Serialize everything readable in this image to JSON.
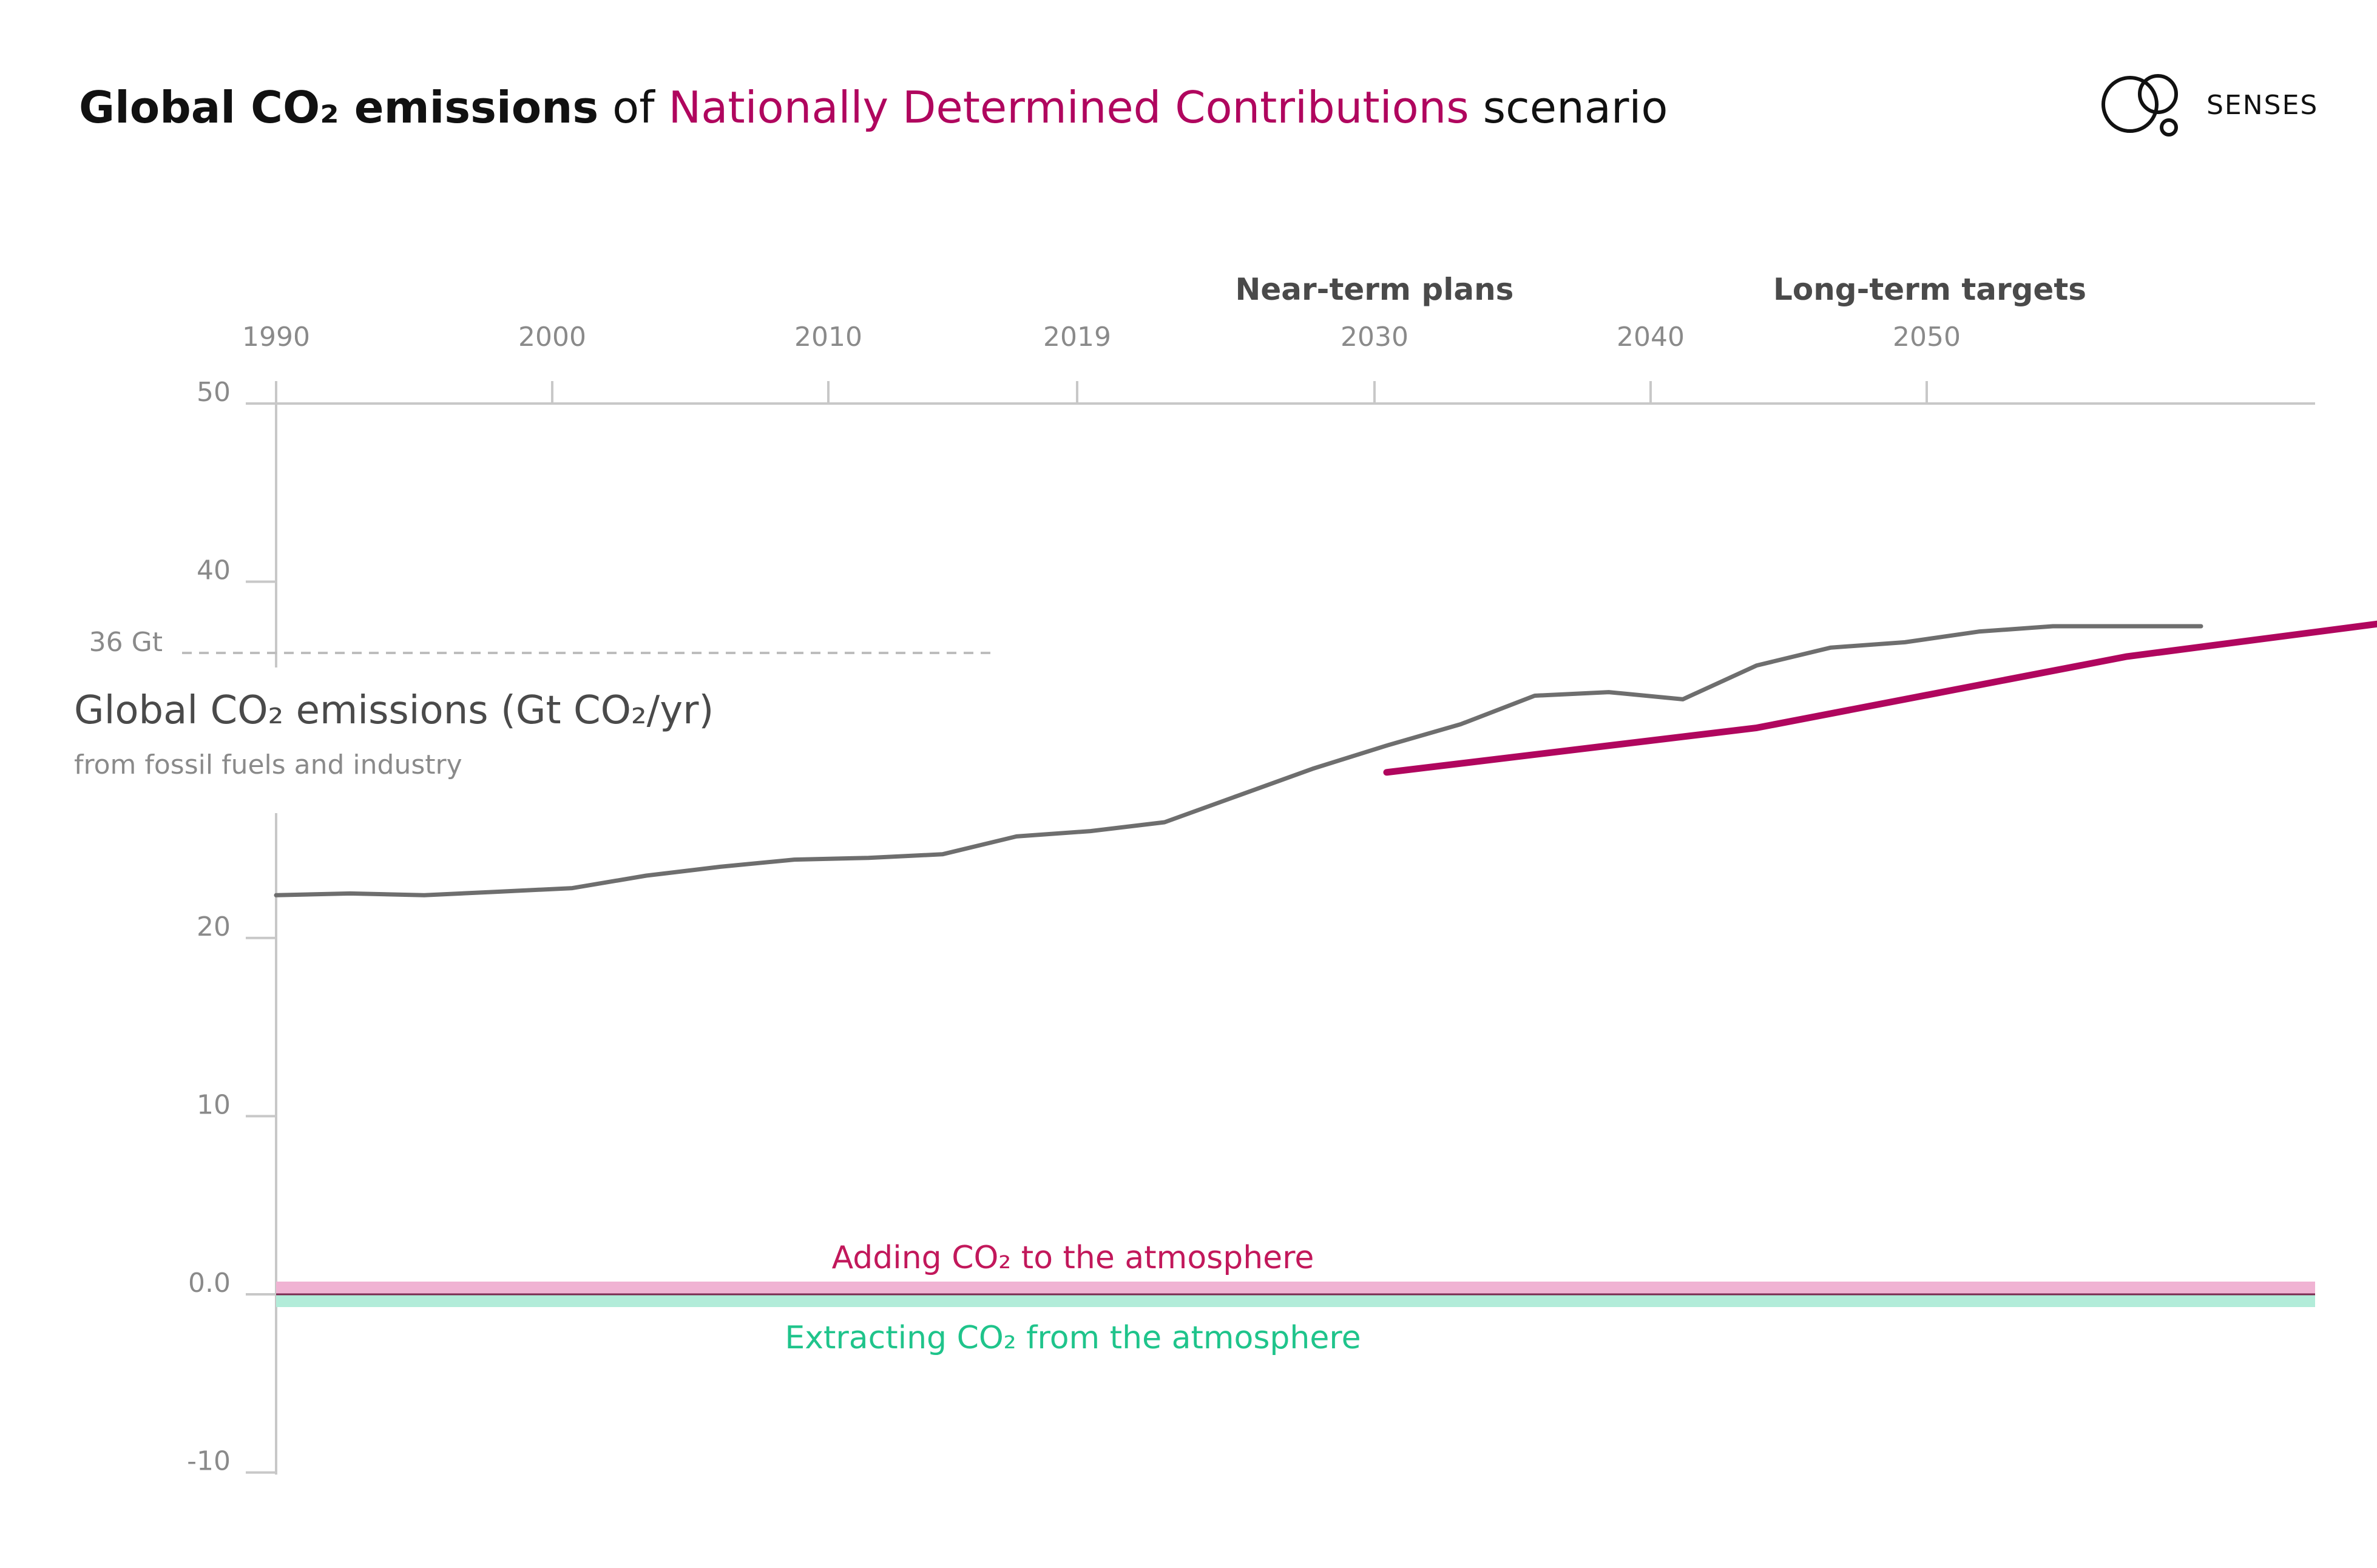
{
  "title": {
    "part1": "Global CO₂ emissions",
    "part2": " of ",
    "part3": "Nationally Determined Contributions",
    "part4": " scenario"
  },
  "logo": {
    "text": "SENSES",
    "icon": "senses-circles-icon"
  },
  "colors": {
    "ndc": "#b0065e",
    "history": "#6e6e6e",
    "adding_band": "#f0b3d3",
    "extracting_band": "#b2ecd9",
    "adding_text": "#c2185b",
    "extracting_text": "#1fc48b",
    "axis": "#c8c8c8"
  },
  "phases": {
    "near_term": "Near-term plans",
    "long_term": "Long-term targets"
  },
  "reference": {
    "label": "36 Gt",
    "value": 36
  },
  "y_axis": {
    "label": "Global CO₂ emissions (Gt CO₂/yr)",
    "sublabel": "from fossil fuels and industry"
  },
  "bands": {
    "adding": "Adding CO₂ to the atmosphere",
    "extracting": "Extracting CO₂ from the atmosphere"
  },
  "chart_data": {
    "type": "line",
    "title": "Global CO₂ emissions of Nationally Determined Contributions scenario",
    "ylabel": "Global CO₂ emissions (Gt CO₂/yr)",
    "xlim": [
      1990,
      2064
    ],
    "ylim": [
      -10,
      50
    ],
    "x_ticks": [
      1990,
      2000,
      2010,
      2019,
      2030,
      2040,
      2050
    ],
    "y_ticks": [
      {
        "value": 50,
        "label": "50"
      },
      {
        "value": 40,
        "label": "40"
      },
      {
        "value": 20,
        "label": "20"
      },
      {
        "value": 10,
        "label": "10"
      },
      {
        "value": 0,
        "label": "0.0"
      },
      {
        "value": -10,
        "label": "-10"
      }
    ],
    "grid": false,
    "series": [
      {
        "key": "history",
        "x": [
          1990,
          1991,
          1992,
          1993,
          1994,
          1995,
          1996,
          1997,
          1998,
          1999,
          2000,
          2001,
          2002,
          2003,
          2004,
          2005,
          2006,
          2007,
          2008,
          2009,
          2010,
          2011,
          2012,
          2013,
          2014,
          2015,
          2016
        ],
        "y": [
          22.4,
          22.5,
          22.4,
          22.6,
          22.8,
          23.5,
          24.0,
          24.4,
          24.5,
          24.7,
          25.7,
          26.0,
          26.5,
          28.0,
          29.5,
          30.8,
          32.0,
          33.6,
          33.8,
          33.4,
          35.3,
          36.3,
          36.6,
          37.2,
          37.5,
          37.5,
          37.5
        ]
      },
      {
        "key": "ndc",
        "name": "NDC",
        "x": [
          2005,
          2010,
          2015,
          2020,
          2025,
          2030
        ],
        "y": [
          29.3,
          31.8,
          35.8,
          38.5,
          39.0,
          39.8
        ]
      }
    ]
  }
}
